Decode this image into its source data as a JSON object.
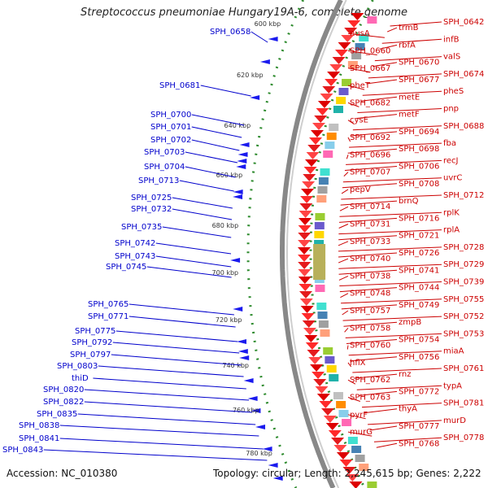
{
  "title": "Streptococcus pneumoniae Hungary19A-6, complete genome",
  "footer": {
    "accession": "Accession: NC_010380",
    "topology": "Topology: circular; Length: 2,245,615 bp; Genes: 2,222"
  },
  "colors": {
    "minus_strand_labels": "#0000cc",
    "plus_strand_labels": "#cc0000",
    "backbone": "#888888",
    "tick_marks": "#2e8b2e"
  },
  "scale_ticks": [
    "600 kbp",
    "620 kbp",
    "640 kbp",
    "660 kbp",
    "680 kbp",
    "700 kbp",
    "720 kbp",
    "740 kbp",
    "760 kbp",
    "780 kbp"
  ],
  "left_genes": [
    "SPH_0658",
    "SPH_0681",
    "SPH_0700",
    "SPH_0701",
    "SPH_0702",
    "SPH_0703",
    "SPH_0704",
    "SPH_0713",
    "SPH_0725",
    "SPH_0732",
    "SPH_0735",
    "SPH_0742",
    "SPH_0743",
    "SPH_0745",
    "SPH_0765",
    "SPH_0771",
    "SPH_0775",
    "SPH_0792",
    "SPH_0797",
    "SPH_0803",
    "thiD",
    "SPH_0820",
    "SPH_0822",
    "SPH_0835",
    "SPH_0838",
    "SPH_0841",
    "SPH_0843"
  ],
  "right_genes": [
    "SPH_0642",
    "trmB",
    "nusA",
    "infB",
    "rbfA",
    "SPH_0660",
    "valS",
    "SPH_0670",
    "SPH_0667",
    "SPH_0674",
    "SPH_0677",
    "pheT",
    "pheS",
    "metE",
    "SPH_0682",
    "pnp",
    "metF",
    "cysE",
    "SPH_0688",
    "SPH_0694",
    "SPH_0692",
    "fba",
    "SPH_0698",
    "SPH_0696",
    "recJ",
    "SPH_0706",
    "SPH_0707",
    "uvrC",
    "SPH_0708",
    "pepV",
    "SPH_0712",
    "brnQ",
    "SPH_0714",
    "rplK",
    "SPH_0716",
    "SPH_0731",
    "rplA",
    "SPH_0721",
    "SPH_0733",
    "SPH_0728",
    "SPH_0726",
    "SPH_0740",
    "SPH_0729",
    "SPH_0741",
    "SPH_0738",
    "SPH_0739",
    "SPH_0744",
    "SPH_0748",
    "SPH_0755",
    "SPH_0749",
    "SPH_0757",
    "SPH_0752",
    "zmpB",
    "SPH_0758",
    "SPH_0753",
    "SPH_0754",
    "SPH_0760",
    "miaA",
    "SPH_0756",
    "hflX",
    "SPH_0761",
    "rnz",
    "SPH_0762",
    "typA",
    "SPH_0772",
    "SPH_0763",
    "SPH_0781",
    "thyA",
    "pyrF",
    "murD",
    "SPH_0777",
    "murG",
    "SPH_0778",
    "SPH_0768"
  ]
}
